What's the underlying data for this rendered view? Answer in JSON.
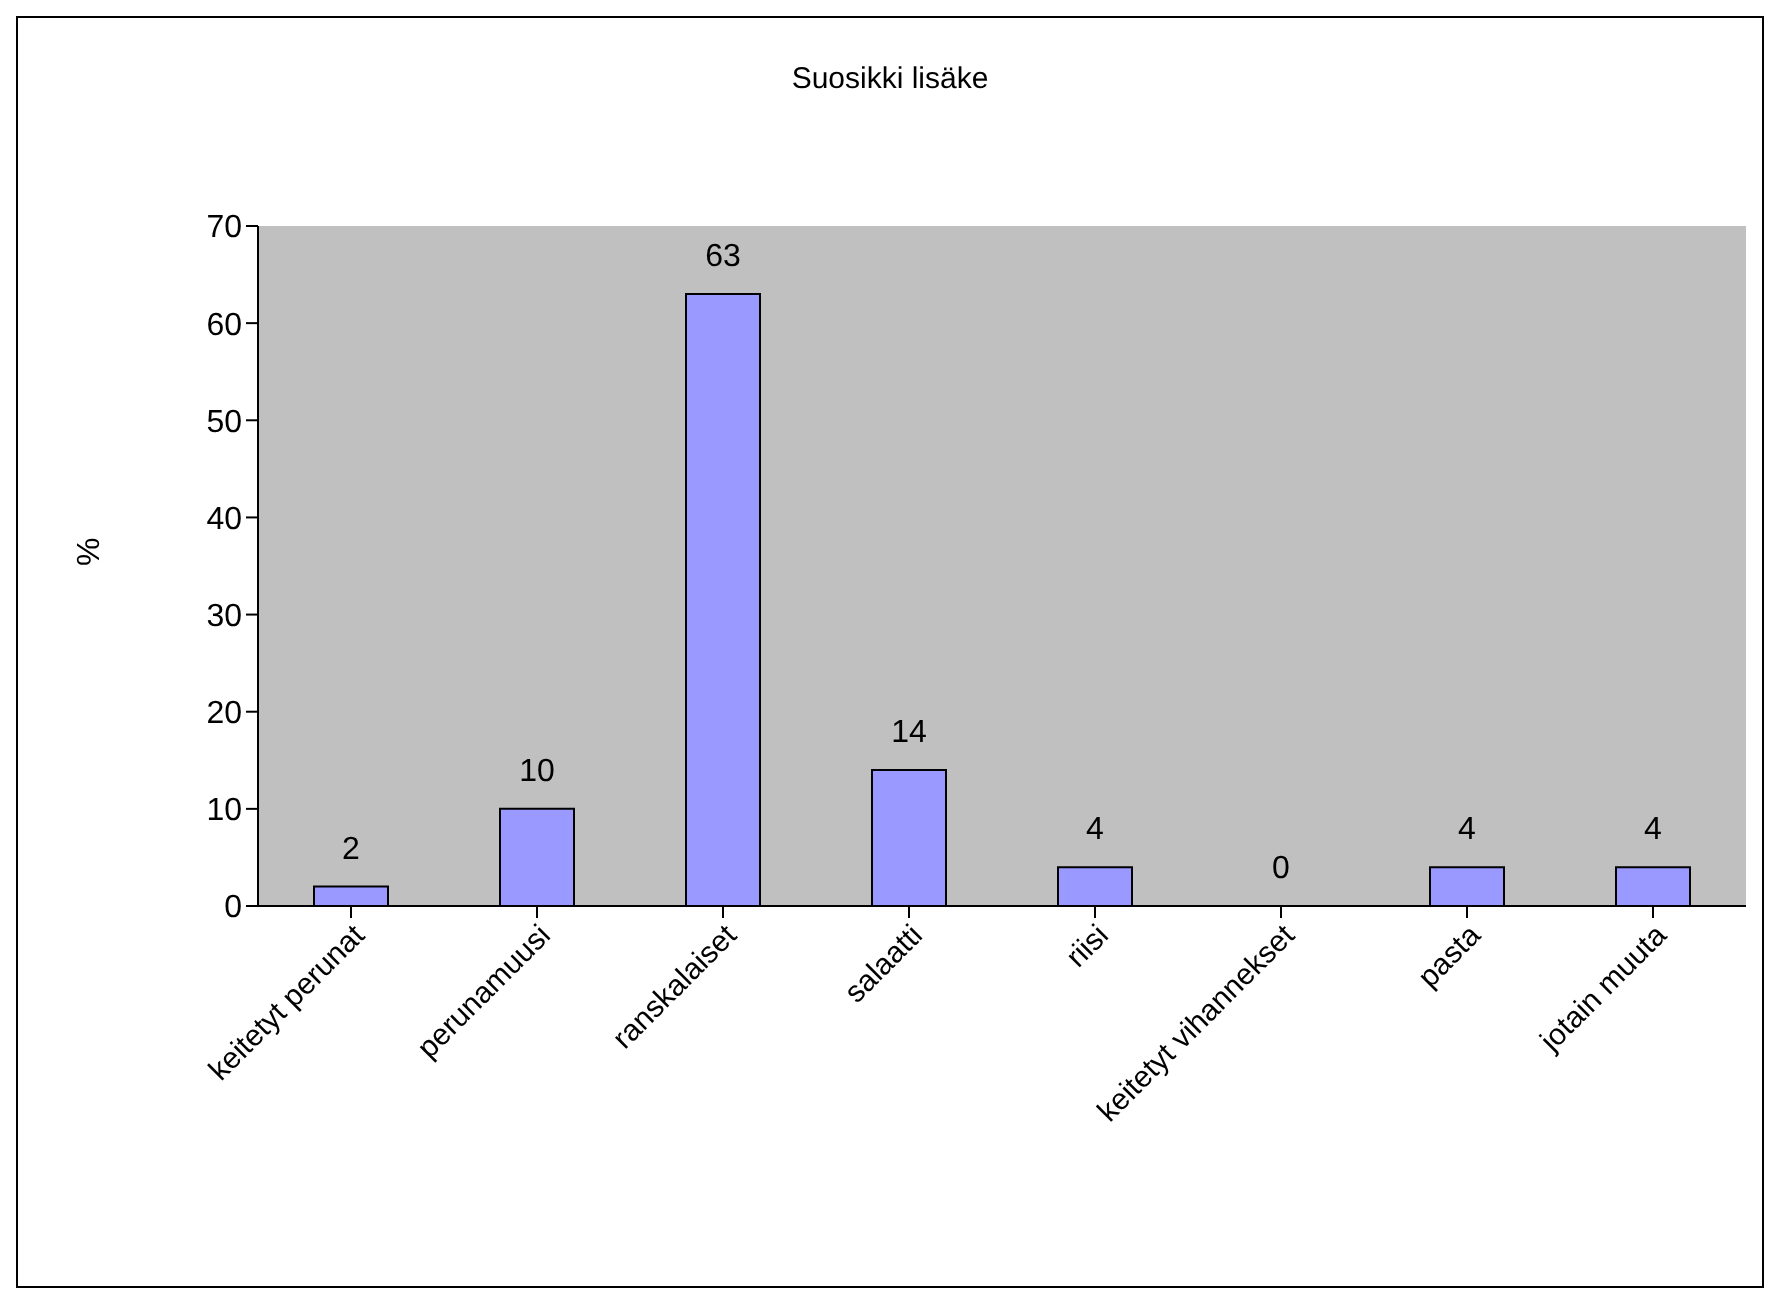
{
  "chart_data": {
    "type": "bar",
    "title": "Suosikki lisäke",
    "ylabel": "%",
    "categories": [
      "keitetyt perunat",
      "perunamuusi",
      "ranskalaiset",
      "salaatti",
      "riisi",
      "keitetyt vihannekset",
      "pasta",
      "jotain muuta"
    ],
    "values": [
      2,
      10,
      63,
      14,
      4,
      0,
      4,
      4
    ],
    "color": "#9999ff",
    "ylim": [
      0,
      70
    ],
    "yticks": [
      0,
      10,
      20,
      30,
      40,
      50,
      60,
      70
    ],
    "data_labels": true
  }
}
